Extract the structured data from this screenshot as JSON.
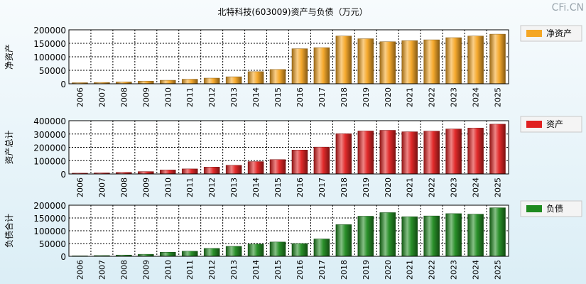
{
  "title": "北特科技(603009)资产与负债（万元）",
  "watermark": "CFi.CN",
  "categories": [
    "2006",
    "2007",
    "2008",
    "2009",
    "2010",
    "2011",
    "2012",
    "2013",
    "2014",
    "2015",
    "2016",
    "2017",
    "2018",
    "2019",
    "2020",
    "2021",
    "2022",
    "2023",
    "2024",
    "2025"
  ],
  "chart_data": [
    {
      "type": "bar",
      "ylabel": "净资产",
      "legend": "净资产",
      "color": "#f5a623",
      "ylim": [
        0,
        200000
      ],
      "yticks": [
        "200000",
        "150000",
        "100000",
        "50000",
        "0"
      ],
      "values": [
        4000,
        5000,
        7000,
        10000,
        13000,
        17000,
        21000,
        26000,
        45000,
        53000,
        130000,
        134000,
        177000,
        167000,
        156000,
        160000,
        163000,
        171000,
        177000,
        184000
      ]
    },
    {
      "type": "bar",
      "ylabel": "资产总计",
      "legend": "资产",
      "color": "#e02020",
      "ylim": [
        0,
        400000
      ],
      "yticks": [
        "400000",
        "300000",
        "200000",
        "100000",
        "0"
      ],
      "values": [
        6000,
        8000,
        12000,
        18000,
        30000,
        38000,
        52000,
        65000,
        93000,
        108000,
        180000,
        202000,
        302000,
        323000,
        328000,
        317000,
        322000,
        338000,
        345000,
        374000
      ]
    },
    {
      "type": "bar",
      "ylabel": "负债合计",
      "legend": "负债",
      "color": "#1f8a1f",
      "ylim": [
        0,
        200000
      ],
      "yticks": [
        "200000",
        "150000",
        "100000",
        "50000",
        "0"
      ],
      "values": [
        2000,
        3000,
        5000,
        8000,
        16000,
        20000,
        31000,
        39000,
        48000,
        56000,
        50000,
        68000,
        124000,
        157000,
        171000,
        155000,
        158000,
        167000,
        165000,
        190000
      ]
    }
  ]
}
